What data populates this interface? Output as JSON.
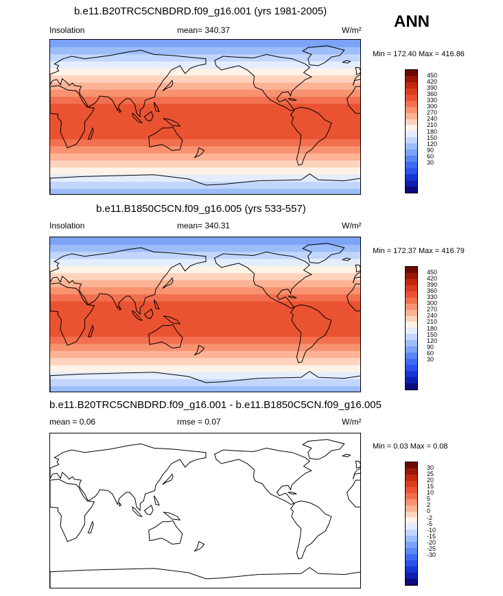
{
  "season": "ANN",
  "colorbar_colors": [
    "#0b0b7d",
    "#0d1fb0",
    "#1535d6",
    "#2b52ec",
    "#3e6cf2",
    "#5b88f5",
    "#7ba3f7",
    "#9dbdf9",
    "#c2d6fb",
    "#e3edfd",
    "#fff2e6",
    "#fdd3bd",
    "#fcb295",
    "#f89270",
    "#f2704f",
    "#ea5332",
    "#d93d1c",
    "#c22a0d",
    "#9c1806",
    "#6e0b00"
  ],
  "panels": [
    {
      "title": "b.e11.B20TRC5CNBDRD.f09_g16.001 (yrs 1981-2005)",
      "variable": "Insolation",
      "stat": "mean= 340.37",
      "units": "W/m²",
      "minmax": "Min = 172.40 Max = 416.86",
      "colorbar_labels": [
        "450",
        "420",
        "390",
        "360",
        "330",
        "300",
        "270",
        "240",
        "210",
        "180",
        "150",
        "120",
        "90",
        "60",
        "30"
      ]
    },
    {
      "title": "b.e11.B1850C5CN.f09_g16.005 (yrs 533-557)",
      "variable": "Insolation",
      "stat": "mean= 340.31",
      "units": "W/m²",
      "minmax": "Min = 172.37 Max = 416.79",
      "colorbar_labels": [
        "450",
        "420",
        "390",
        "360",
        "330",
        "300",
        "270",
        "240",
        "210",
        "180",
        "150",
        "120",
        "90",
        "60",
        "30"
      ]
    },
    {
      "title": "b.e11.B20TRC5CNBDRD.f09_g16.001 - b.e11.B1850C5CN.f09_g16.005",
      "variable": "mean =   0.06",
      "stat": "rmse =   0.07",
      "units": "W/m²",
      "minmax": "Min =   0.03 Max =   0.08",
      "colorbar_labels": [
        "30",
        "25",
        "20",
        "15",
        "10",
        "5",
        "2",
        "0",
        "-2",
        "-5",
        "-10",
        "-15",
        "-20",
        "-25",
        "-30"
      ]
    }
  ],
  "chart_data": [
    {
      "type": "heatmap",
      "title": "b.e11.B20TRC5CNBDRD.f09_g16.001 (yrs 1981-2005)",
      "variable": "Insolation",
      "units": "W/m²",
      "mean": 340.37,
      "min": 172.4,
      "max": 416.86,
      "band_colors_south_to_north": [
        "#9dbdf9",
        "#c2d6fb",
        "#e3edfd",
        "#fff2e6",
        "#fdd3bd",
        "#fcb295",
        "#f89270",
        "#f2704f",
        "#ea5332",
        "#ea5332",
        "#ea5332",
        "#ea5332",
        "#ea5332",
        "#f2704f",
        "#f89270",
        "#fcb295",
        "#fdd3bd",
        "#fff2e6",
        "#e3edfd",
        "#c2d6fb",
        "#9dbdf9",
        "#7ba3f7"
      ],
      "colorbar_levels": [
        30,
        60,
        90,
        120,
        150,
        180,
        210,
        240,
        270,
        300,
        330,
        360,
        390,
        420,
        450
      ]
    },
    {
      "type": "heatmap",
      "title": "b.e11.B1850C5CN.f09_g16.005 (yrs 533-557)",
      "variable": "Insolation",
      "units": "W/m²",
      "mean": 340.31,
      "min": 172.37,
      "max": 416.79,
      "band_colors_south_to_north": [
        "#9dbdf9",
        "#c2d6fb",
        "#e3edfd",
        "#fff2e6",
        "#fdd3bd",
        "#fcb295",
        "#f89270",
        "#f2704f",
        "#ea5332",
        "#ea5332",
        "#ea5332",
        "#ea5332",
        "#ea5332",
        "#f2704f",
        "#f89270",
        "#fcb295",
        "#fdd3bd",
        "#fff2e6",
        "#e3edfd",
        "#c2d6fb",
        "#9dbdf9",
        "#7ba3f7"
      ],
      "colorbar_levels": [
        30,
        60,
        90,
        120,
        150,
        180,
        210,
        240,
        270,
        300,
        330,
        360,
        390,
        420,
        450
      ]
    },
    {
      "type": "heatmap",
      "title": "b.e11.B20TRC5CNBDRD.f09_g16.001 - b.e11.B1850C5CN.f09_g16.005",
      "units": "W/m²",
      "mean": 0.06,
      "rmse": 0.07,
      "min": 0.03,
      "max": 0.08,
      "band_colors_south_to_north": [],
      "colorbar_levels": [
        -30,
        -25,
        -20,
        -15,
        -10,
        -5,
        -2,
        0,
        2,
        5,
        10,
        15,
        20,
        25,
        30
      ]
    }
  ]
}
